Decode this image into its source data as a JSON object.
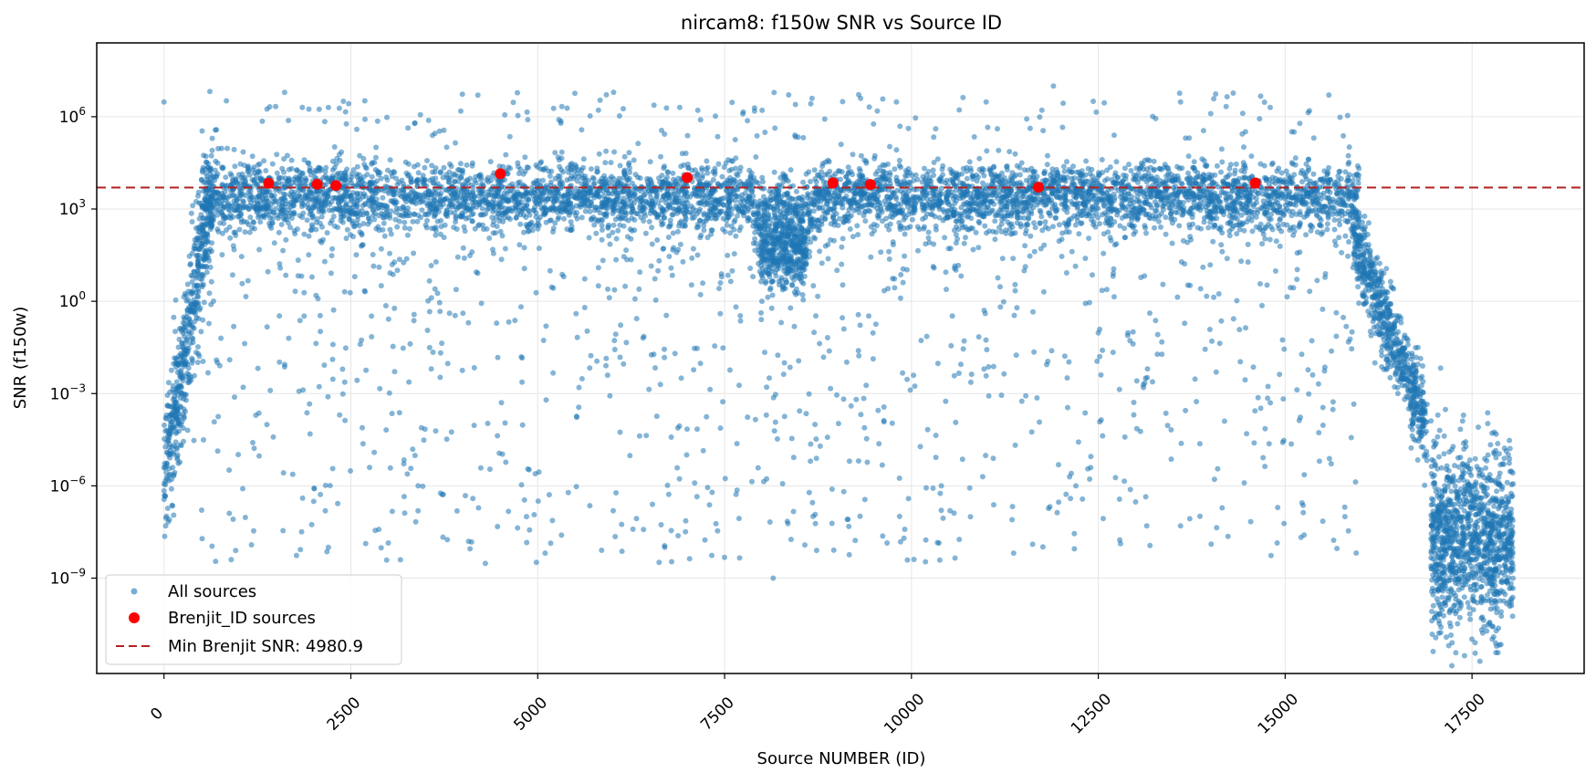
{
  "chart_data": {
    "type": "scatter",
    "title": "nircam8: f150w SNR vs Source ID",
    "xlabel": "Source NUMBER (ID)",
    "ylabel": "SNR (f150w)",
    "x_range": [
      -900,
      19000
    ],
    "y_range_log10": [
      -12.1,
      8.4
    ],
    "y_scale": "log",
    "grid": true,
    "legend_position": "lower-left",
    "x_ticks": [
      0,
      2500,
      5000,
      7500,
      10000,
      12500,
      15000,
      17500
    ],
    "x_tick_labels": [
      "0",
      "2500",
      "5000",
      "7500",
      "10000",
      "12500",
      "15000",
      "17500"
    ],
    "y_ticks_log10": [
      -9,
      -6,
      -3,
      0,
      3,
      6
    ],
    "y_tick_bases": [
      "10",
      "10",
      "10",
      "10",
      "10",
      "10"
    ],
    "y_tick_exponents": [
      "−9",
      "−6",
      "−3",
      "0",
      "3",
      "6"
    ],
    "colors": {
      "all_sources": "#1f77b4",
      "brenjit": "#ff0000",
      "threshold": "#b22222"
    },
    "series": [
      {
        "name": "All sources",
        "marker": "circle",
        "point_density": "dense band of ~18000 points; bulk at SNR 10^2–10^5 for IDs 500–16000, tail dropping to 10^-9–10^-12 for IDs 16000–18000",
        "approx_points": [
          [
            0,
            3000000
          ],
          [
            130,
            0.3
          ],
          [
            230,
            0.001
          ],
          [
            400,
            3e-05
          ],
          [
            900,
            4e-09
          ],
          [
            1850,
            2000000
          ],
          [
            2200,
            2000000
          ],
          [
            2200,
            1e-08
          ],
          [
            3200,
            0.03
          ],
          [
            3400,
            1e-06
          ],
          [
            4300,
            3e-09
          ],
          [
            4200,
            5000000
          ],
          [
            4850,
            1e-07
          ],
          [
            5600,
            10000
          ],
          [
            6900,
            2000000
          ],
          [
            6700,
            1e-08
          ],
          [
            8000,
            1
          ],
          [
            8150,
            1e-09
          ],
          [
            8300,
            0.01
          ],
          [
            9800,
            3000000
          ],
          [
            9900,
            2e-08
          ],
          [
            10400,
            1e-06
          ],
          [
            11000,
            3000000
          ],
          [
            11900,
            10000000
          ],
          [
            12200,
            1e-06
          ],
          [
            13000,
            3e-07
          ],
          [
            13600,
            3000000
          ],
          [
            13600,
            5e-08
          ],
          [
            14800,
            2000000
          ],
          [
            15800,
            1e-07
          ],
          [
            16200,
            0.01
          ],
          [
            16700,
            0.0001
          ],
          [
            17000,
            1e-09
          ],
          [
            17400,
            3e-12
          ],
          [
            18000,
            3e-05
          ]
        ]
      },
      {
        "name": "Brenjit_ID sources",
        "marker": "circle",
        "points": [
          [
            1400,
            6900
          ],
          [
            2050,
            6400
          ],
          [
            2300,
            5800
          ],
          [
            4500,
            14000
          ],
          [
            7000,
            10500
          ],
          [
            8950,
            7100
          ],
          [
            9450,
            6300
          ],
          [
            11700,
            5100
          ],
          [
            14600,
            7000
          ]
        ]
      }
    ],
    "threshold": {
      "name": "Min Brenjit SNR: 4980.9",
      "value": 4980.9,
      "style": "dashed"
    },
    "legend": [
      "All sources",
      "Brenjit_ID sources",
      "Min Brenjit SNR: 4980.9"
    ]
  }
}
